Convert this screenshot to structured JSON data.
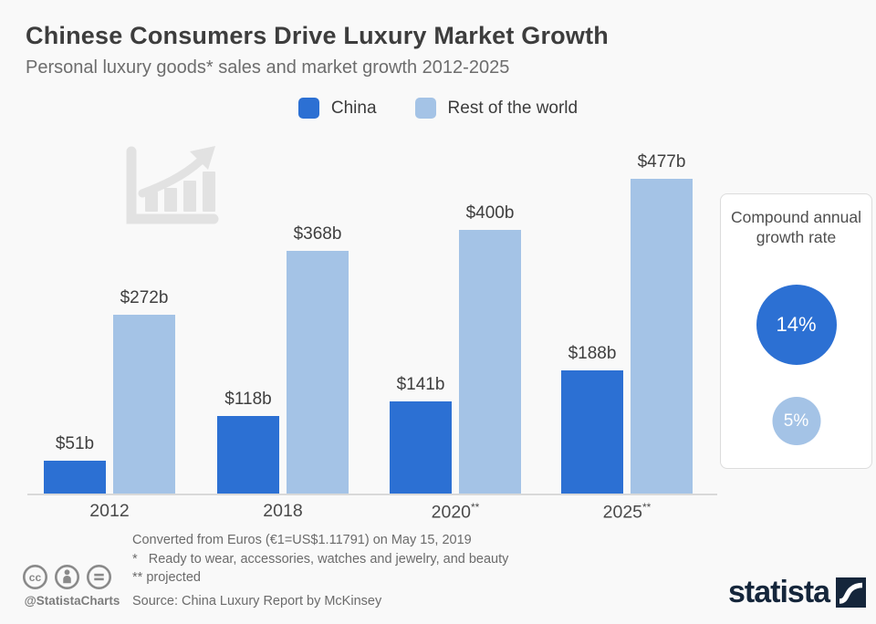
{
  "header": {
    "title": "Chinese Consumers Drive Luxury Market Growth",
    "subtitle": "Personal luxury goods* sales and market growth 2012-2025"
  },
  "legend": {
    "items": [
      {
        "label": "China",
        "color": "#2c70d3"
      },
      {
        "label": "Rest of the world",
        "color": "#a4c3e6"
      }
    ]
  },
  "chart_data": {
    "type": "bar",
    "title": "Personal luxury goods sales and market growth 2012-2025",
    "categories": [
      "2012",
      "2018",
      "2020**",
      "2025**"
    ],
    "series": [
      {
        "name": "China",
        "color": "#2c70d3",
        "values": [
          51,
          118,
          141,
          188
        ],
        "value_labels": [
          "$51b",
          "$118b",
          "$141b",
          "$188b"
        ]
      },
      {
        "name": "Rest of the world",
        "color": "#a4c3e6",
        "values": [
          272,
          368,
          400,
          477
        ],
        "value_labels": [
          "$272b",
          "$368b",
          "$400b",
          "$477b"
        ]
      }
    ],
    "xlabel": "",
    "ylabel": "",
    "ylim": [
      0,
      500
    ],
    "grid": false,
    "legend_position": "top"
  },
  "cagr_panel": {
    "title": "Compound annual growth rate",
    "items": [
      {
        "value": "14%",
        "color": "#2c70d3"
      },
      {
        "value": "5%",
        "color": "#a4c3e6"
      }
    ]
  },
  "footer": {
    "notes": [
      "Converted from Euros (€1=US$1.11791) on May 15, 2019",
      "*   Ready to wear, accessories, watches and jewelry, and beauty",
      "** projected"
    ],
    "source": "Source: China Luxury Report by McKinsey"
  },
  "branding": {
    "handle": "@StatistaCharts",
    "logo_text": "statista",
    "logo_color": "#15263b",
    "license_icons": [
      "cc-icon",
      "attribution-person-icon",
      "equals-icon"
    ]
  },
  "colors": {
    "background": "#f9f9f9",
    "axis": "#d9d9d9",
    "watermark": "#e2e2e2"
  }
}
